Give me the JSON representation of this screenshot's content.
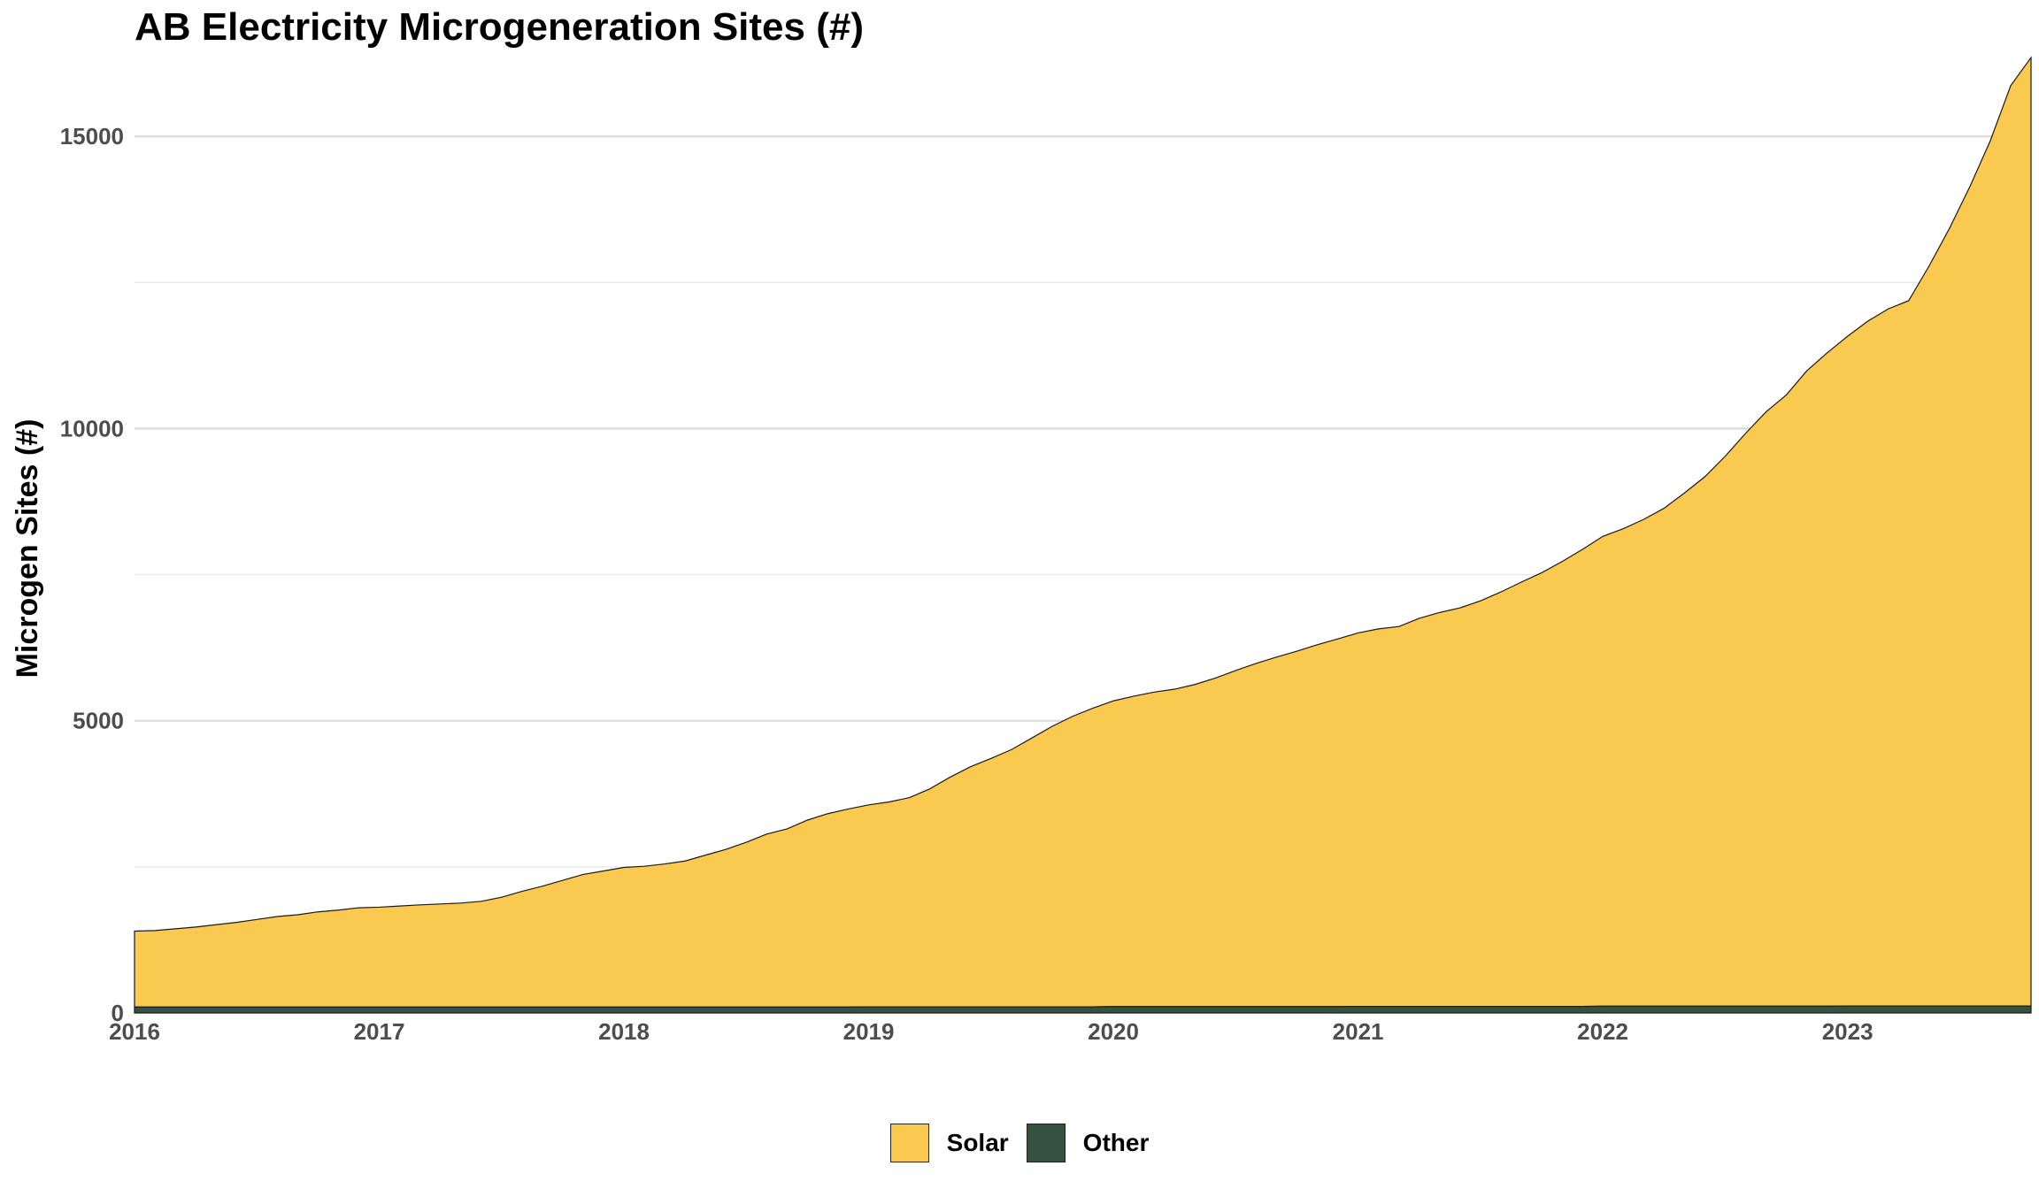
{
  "title": "AB Electricity Microgeneration Sites (#)",
  "chart_data": {
    "type": "area",
    "stacked": true,
    "title": "AB Electricity Microgeneration Sites (#)",
    "xlabel": "",
    "ylabel": "Microgen Sites (#)",
    "ylim": [
      0,
      16500
    ],
    "yticks": [
      0,
      5000,
      10000,
      15000
    ],
    "xticks": [
      "2016",
      "2017",
      "2018",
      "2019",
      "2020",
      "2021",
      "2022",
      "2023"
    ],
    "xlim": [
      2016.0,
      2023.75
    ],
    "grid": true,
    "legend_position": "bottom",
    "x": [
      2016.0,
      2016.083,
      2016.167,
      2016.25,
      2016.333,
      2016.417,
      2016.5,
      2016.583,
      2016.667,
      2016.75,
      2016.833,
      2016.917,
      2017.0,
      2017.083,
      2017.167,
      2017.25,
      2017.333,
      2017.417,
      2017.5,
      2017.583,
      2017.667,
      2017.75,
      2017.833,
      2017.917,
      2018.0,
      2018.083,
      2018.167,
      2018.25,
      2018.333,
      2018.417,
      2018.5,
      2018.583,
      2018.667,
      2018.75,
      2018.833,
      2018.917,
      2019.0,
      2019.083,
      2019.167,
      2019.25,
      2019.333,
      2019.417,
      2019.5,
      2019.583,
      2019.667,
      2019.75,
      2019.833,
      2019.917,
      2020.0,
      2020.083,
      2020.167,
      2020.25,
      2020.333,
      2020.417,
      2020.5,
      2020.583,
      2020.667,
      2020.75,
      2020.833,
      2020.917,
      2021.0,
      2021.083,
      2021.167,
      2021.25,
      2021.333,
      2021.417,
      2021.5,
      2021.583,
      2021.667,
      2021.75,
      2021.833,
      2021.917,
      2022.0,
      2022.083,
      2022.167,
      2022.25,
      2022.333,
      2022.417,
      2022.5,
      2022.583,
      2022.667,
      2022.75,
      2022.833,
      2022.917,
      2023.0,
      2023.083,
      2023.167,
      2023.25,
      2023.333,
      2023.417,
      2023.5,
      2023.583,
      2023.667,
      2023.75
    ],
    "series": [
      {
        "name": "Other",
        "color": "#35523f",
        "values": [
          100,
          100,
          100,
          100,
          100,
          100,
          100,
          100,
          100,
          100,
          100,
          100,
          100,
          100,
          100,
          100,
          100,
          100,
          100,
          100,
          100,
          100,
          100,
          100,
          100,
          100,
          100,
          100,
          100,
          100,
          100,
          100,
          100,
          100,
          100,
          100,
          105,
          105,
          105,
          105,
          105,
          105,
          105,
          105,
          105,
          105,
          105,
          105,
          110,
          110,
          110,
          110,
          110,
          110,
          110,
          110,
          110,
          110,
          110,
          110,
          112,
          112,
          112,
          112,
          112,
          112,
          112,
          112,
          112,
          112,
          112,
          112,
          115,
          115,
          115,
          115,
          115,
          115,
          115,
          115,
          115,
          115,
          115,
          115,
          118,
          118,
          118,
          118,
          118,
          118,
          118,
          118,
          118,
          118
        ]
      },
      {
        "name": "Solar",
        "color": "#f9c950",
        "values": [
          1300,
          1310,
          1340,
          1370,
          1410,
          1450,
          1500,
          1550,
          1580,
          1630,
          1660,
          1700,
          1710,
          1730,
          1750,
          1765,
          1780,
          1810,
          1880,
          1980,
          2070,
          2170,
          2270,
          2330,
          2390,
          2410,
          2450,
          2500,
          2600,
          2700,
          2820,
          2960,
          3050,
          3200,
          3310,
          3390,
          3455,
          3505,
          3580,
          3730,
          3930,
          4110,
          4250,
          4400,
          4600,
          4800,
          4970,
          5110,
          5230,
          5310,
          5380,
          5430,
          5510,
          5620,
          5750,
          5870,
          5980,
          6080,
          6190,
          6290,
          6390,
          6460,
          6500,
          6640,
          6740,
          6820,
          6940,
          7090,
          7260,
          7420,
          7610,
          7820,
          8040,
          8170,
          8330,
          8520,
          8780,
          9060,
          9410,
          9800,
          10170,
          10460,
          10870,
          11180,
          11460,
          11720,
          11930,
          12070,
          12660,
          13310,
          14020,
          14800,
          15750,
          16230
        ]
      }
    ]
  },
  "legend": {
    "items": [
      {
        "label": "Solar",
        "color": "#f9c950"
      },
      {
        "label": "Other",
        "color": "#35523f"
      }
    ]
  }
}
